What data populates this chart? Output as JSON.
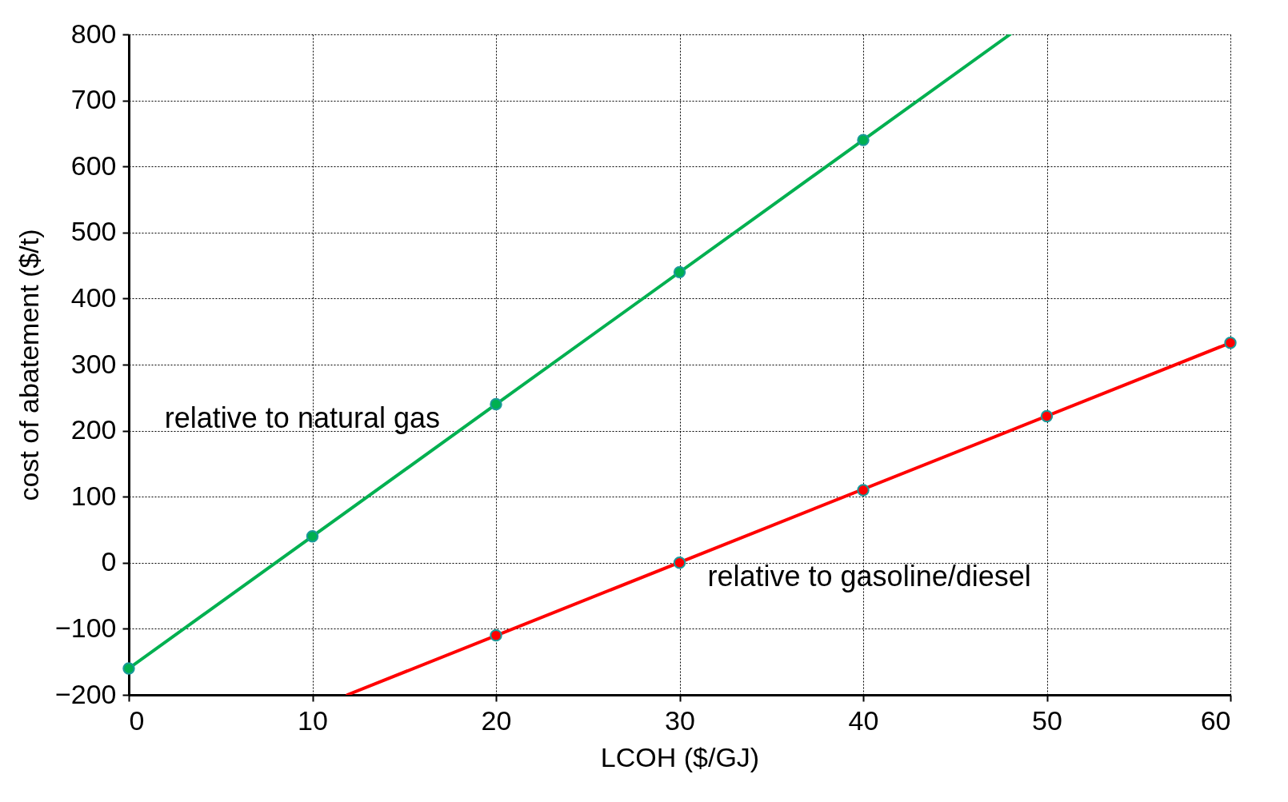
{
  "chart_data": {
    "type": "line",
    "xlabel": "LCOH ($/GJ)",
    "ylabel": "cost of abatement ($/t)",
    "xlim": [
      0,
      60
    ],
    "xticks": [
      0,
      10,
      20,
      30,
      40,
      50,
      60
    ],
    "ylim": [
      -200,
      800
    ],
    "yticks": [
      -200,
      -100,
      0,
      100,
      200,
      300,
      400,
      500,
      600,
      700,
      800
    ],
    "grid": true,
    "series": [
      {
        "color": "#00b050",
        "x": [
          0,
          48
        ],
        "values": [
          -160,
          800
        ],
        "marker": "none"
      },
      {
        "type": "scatter",
        "name": "relative to natural gas",
        "color": "#00b050",
        "x": [
          0,
          10,
          20,
          30,
          40
        ],
        "values": [
          -160,
          40,
          240,
          440,
          640
        ],
        "marker": "circle"
      },
      {
        "color": "#ff0000",
        "x": [
          11.9,
          60
        ],
        "values": [
          -200,
          333
        ],
        "marker": "none"
      },
      {
        "type": "scatter",
        "name": "relative to gasoline/diesel",
        "color": "#ff0000",
        "x": [
          20,
          30,
          40,
          50,
          60
        ],
        "values": [
          -110,
          0,
          110,
          222,
          333
        ],
        "marker": "circle"
      }
    ]
  }
}
